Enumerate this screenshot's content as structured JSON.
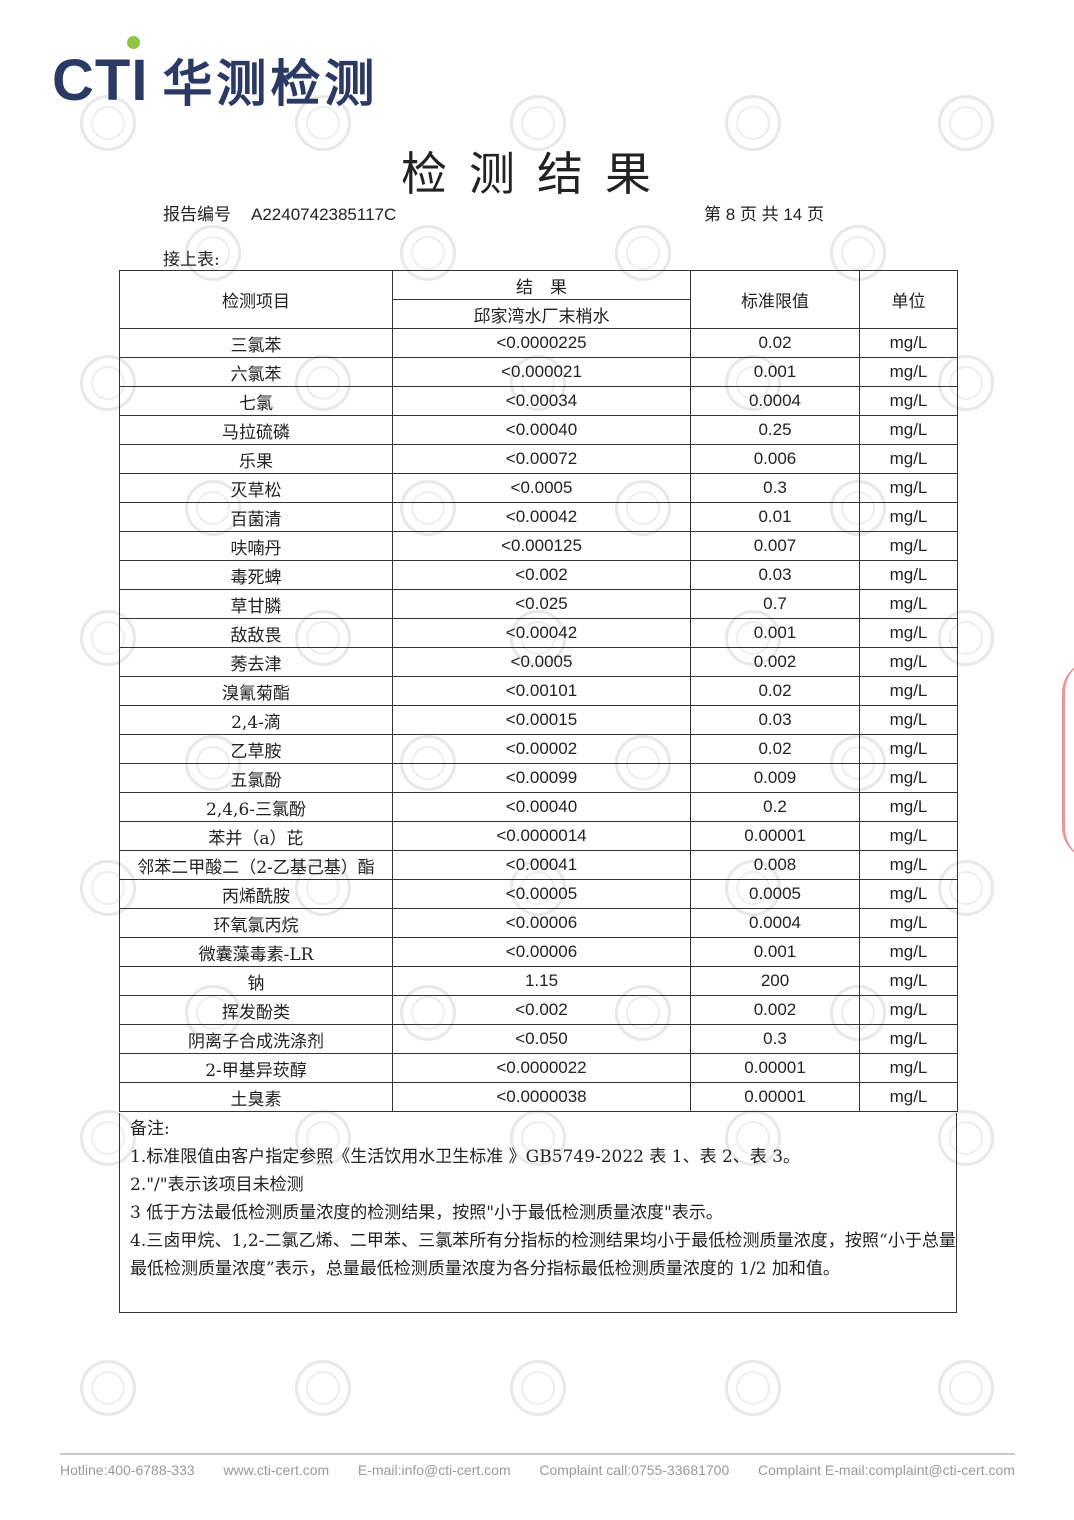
{
  "logo": {
    "text": "CTI",
    "cn": "华测检测",
    "accent": "#8dc63f",
    "brand": "#2b3a64"
  },
  "title": "检测结果",
  "report": {
    "label": "报告编号",
    "number": "A2240742385117C",
    "page": "第 8 页 共 14 页"
  },
  "continued": "接上表:",
  "table": {
    "headers": {
      "item": "检测项目",
      "result": "结　果",
      "sample": "邱家湾水厂末梢水",
      "limit": "标准限值",
      "unit": "单位"
    },
    "rows": [
      [
        "三氯苯",
        "<0.0000225",
        "0.02",
        "mg/L"
      ],
      [
        "六氯苯",
        "<0.000021",
        "0.001",
        "mg/L"
      ],
      [
        "七氯",
        "<0.00034",
        "0.0004",
        "mg/L"
      ],
      [
        "马拉硫磷",
        "<0.00040",
        "0.25",
        "mg/L"
      ],
      [
        "乐果",
        "<0.00072",
        "0.006",
        "mg/L"
      ],
      [
        "灭草松",
        "<0.0005",
        "0.3",
        "mg/L"
      ],
      [
        "百菌清",
        "<0.00042",
        "0.01",
        "mg/L"
      ],
      [
        "呋喃丹",
        "<0.000125",
        "0.007",
        "mg/L"
      ],
      [
        "毒死蜱",
        "<0.002",
        "0.03",
        "mg/L"
      ],
      [
        "草甘膦",
        "<0.025",
        "0.7",
        "mg/L"
      ],
      [
        "敌敌畏",
        "<0.00042",
        "0.001",
        "mg/L"
      ],
      [
        "莠去津",
        "<0.0005",
        "0.002",
        "mg/L"
      ],
      [
        "溴氰菊酯",
        "<0.00101",
        "0.02",
        "mg/L"
      ],
      [
        "2,4-滴",
        "<0.00015",
        "0.03",
        "mg/L"
      ],
      [
        "乙草胺",
        "<0.00002",
        "0.02",
        "mg/L"
      ],
      [
        "五氯酚",
        "<0.00099",
        "0.009",
        "mg/L"
      ],
      [
        "2,4,6-三氯酚",
        "<0.00040",
        "0.2",
        "mg/L"
      ],
      [
        "苯并（a）芘",
        "<0.0000014",
        "0.00001",
        "mg/L"
      ],
      [
        "邻苯二甲酸二（2-乙基己基）酯",
        "<0.00041",
        "0.008",
        "mg/L"
      ],
      [
        "丙烯酰胺",
        "<0.00005",
        "0.0005",
        "mg/L"
      ],
      [
        "环氧氯丙烷",
        "<0.00006",
        "0.0004",
        "mg/L"
      ],
      [
        "微囊藻毒素-LR",
        "<0.00006",
        "0.001",
        "mg/L"
      ],
      [
        "钠",
        "1.15",
        "200",
        "mg/L"
      ],
      [
        "挥发酚类",
        "<0.002",
        "0.002",
        "mg/L"
      ],
      [
        "阴离子合成洗涤剂",
        "<0.050",
        "0.3",
        "mg/L"
      ],
      [
        "2-甲基异莰醇",
        "<0.0000022",
        "0.00001",
        "mg/L"
      ],
      [
        "土臭素",
        "<0.0000038",
        "0.00001",
        "mg/L"
      ]
    ]
  },
  "notes": {
    "heading": "备注:",
    "lines": [
      "1.标准限值由客户指定参照《生活饮用水卫生标准 》GB5749-2022 表 1、表 2、表 3。",
      "2.\"/\"表示该项目未检测",
      "3 低于方法最低检测质量浓度的检测结果，按照\"小于最低检测质量浓度\"表示。",
      "4.三卤甲烷、1,2-二氯乙烯、二甲苯、三氯苯所有分指标的检测结果均小于最低检测质量浓度，按照“小于总量最低检测质量浓度”表示，总量最低检测质量浓度为各分指标最低检测质量浓度的 1/2 加和值。"
    ]
  },
  "watermark": "CTI",
  "footer": [
    "Hotline:400-6788-333",
    "www.cti-cert.com",
    "E-mail:info@cti-cert.com",
    "Complaint call:0755-33681700",
    "Complaint E-mail:complaint@cti-cert.com"
  ]
}
